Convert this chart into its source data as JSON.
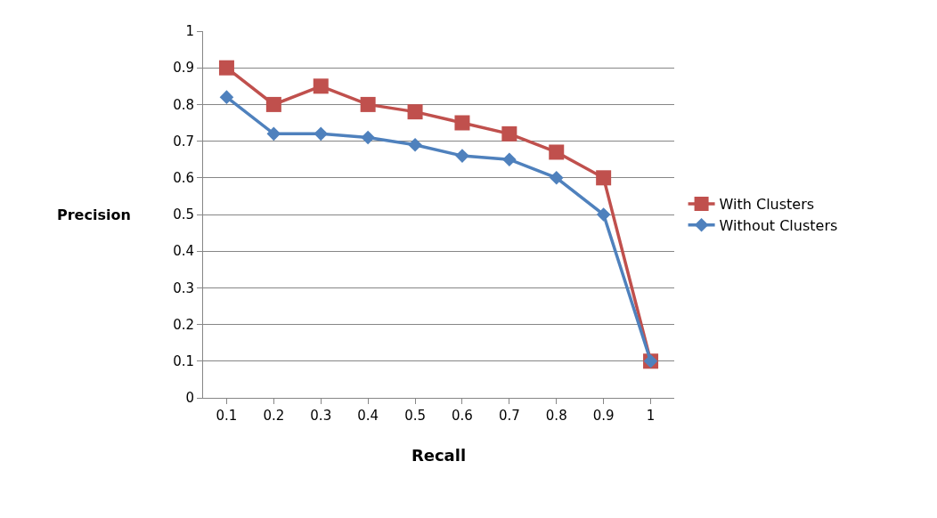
{
  "chart_data": {
    "type": "line",
    "xlabel": "Recall",
    "ylabel": "Precision",
    "categories": [
      "0.1",
      "0.2",
      "0.3",
      "0.4",
      "0.5",
      "0.6",
      "0.7",
      "0.8",
      "0.9",
      "1"
    ],
    "series": [
      {
        "name": "With Clusters",
        "color": "#c0504d",
        "marker": "square",
        "values": [
          0.9,
          0.8,
          0.85,
          0.8,
          0.78,
          0.75,
          0.72,
          0.67,
          0.6,
          0.1
        ]
      },
      {
        "name": "Without Clusters",
        "color": "#4f81bd",
        "marker": "diamond",
        "values": [
          0.82,
          0.72,
          0.72,
          0.71,
          0.69,
          0.66,
          0.65,
          0.6,
          0.5,
          0.1
        ]
      }
    ],
    "ylim": [
      0,
      1
    ],
    "yticks": [
      0,
      0.1,
      0.2,
      0.3,
      0.4,
      0.5,
      0.6,
      0.7,
      0.8,
      0.9,
      1
    ],
    "grid": "y",
    "legend": "right",
    "line_style": "solid"
  }
}
